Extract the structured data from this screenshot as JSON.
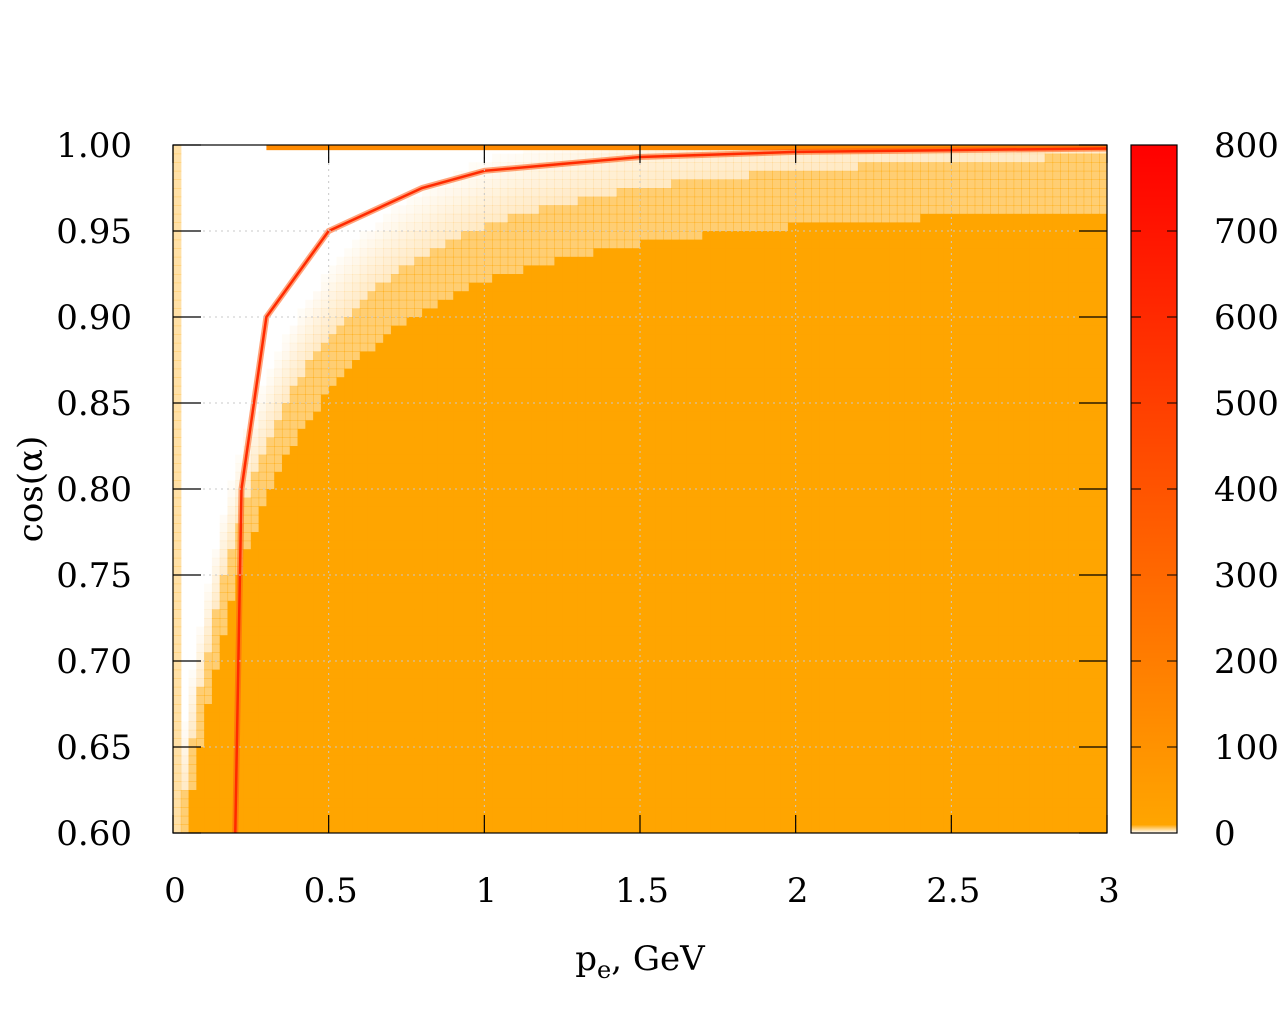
{
  "chart_data": {
    "type": "heatmap",
    "title": "",
    "xlabel_main": "p",
    "xlabel_sub": "e",
    "xlabel_rest": ", GeV",
    "ylabel": "cos(α)",
    "xlim": [
      0,
      3
    ],
    "ylim": [
      0.6,
      1.0
    ],
    "x_ticks": [
      "0",
      "0.5",
      "1",
      "1.5",
      "2",
      "2.5",
      "3"
    ],
    "x_tick_values": [
      0,
      0.5,
      1,
      1.5,
      2,
      2.5,
      3
    ],
    "y_ticks": [
      "0.60",
      "0.65",
      "0.70",
      "0.75",
      "0.80",
      "0.85",
      "0.90",
      "0.95",
      "1.00"
    ],
    "y_tick_values": [
      0.6,
      0.65,
      0.7,
      0.75,
      0.8,
      0.85,
      0.9,
      0.95,
      1.0
    ],
    "colorbar_ticks": [
      "0",
      "100",
      "200",
      "300",
      "400",
      "500",
      "600",
      "700",
      "800"
    ],
    "colorbar_range": [
      0,
      800
    ],
    "colormap": [
      "#ffffff",
      "#ffa500",
      "#ff0000"
    ],
    "grid": true,
    "ridge_points": [
      [
        0.2,
        0.6
      ],
      [
        0.22,
        0.8
      ],
      [
        0.3,
        0.9
      ],
      [
        0.5,
        0.95
      ],
      [
        0.8,
        0.975
      ],
      [
        1.0,
        0.985
      ],
      [
        1.5,
        0.993
      ],
      [
        2.0,
        0.996
      ],
      [
        3.0,
        0.998
      ]
    ],
    "peak_value": 800
  }
}
